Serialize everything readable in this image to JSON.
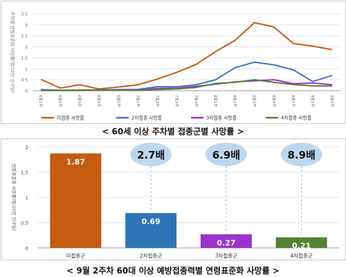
{
  "captions": {
    "top": "< 60세 이상 주차별 접종군별 사망률 >",
    "bottom": "< 9월 2주차 60대 이상 예방접종력별 연령표준화 사망률 >"
  },
  "chart_data": [
    {
      "type": "line",
      "ylabel": "주차별 연령표준화 사망률(명/10만 인구당)",
      "ylim": [
        0,
        3.5
      ],
      "yticks": [
        0,
        0.5,
        1,
        1.5,
        2,
        2.5,
        3,
        3.5
      ],
      "categories": [
        "6월1주",
        "6월2주",
        "6월3주",
        "6월4주",
        "6월5주",
        "7월1주",
        "7월2주",
        "7월3주",
        "7월4주",
        "8월1주",
        "8월2주",
        "8월3주",
        "8월4주",
        "8월5주",
        "9월1주",
        "9월2주"
      ],
      "grid": true,
      "legend": "bottom",
      "series": [
        {
          "name": "미접종 사망률",
          "color": "#c55a11",
          "values": [
            0.52,
            0.12,
            0.27,
            0.08,
            0.17,
            0.27,
            0.53,
            0.84,
            1.2,
            1.78,
            2.3,
            3.1,
            2.9,
            2.15,
            2.03,
            1.87
          ]
        },
        {
          "name": "2차접종 사망률",
          "color": "#4472c4",
          "values": [
            0.05,
            0.02,
            0.03,
            0.04,
            0.05,
            0.06,
            0.18,
            0.18,
            0.27,
            0.5,
            1.05,
            1.3,
            1.18,
            0.95,
            0.42,
            0.69
          ]
        },
        {
          "name": "3차접종 사망률",
          "color": "#9933cc",
          "values": [
            0.02,
            0.02,
            0.02,
            0.02,
            0.03,
            0.03,
            0.1,
            0.12,
            0.2,
            0.3,
            0.4,
            0.45,
            0.5,
            0.32,
            0.35,
            0.27
          ]
        },
        {
          "name": "4차접종 사망률",
          "color": "#548235",
          "values": [
            0.01,
            0.01,
            0.01,
            0.02,
            0.02,
            0.02,
            0.05,
            0.08,
            0.15,
            0.33,
            0.38,
            0.5,
            0.38,
            0.28,
            0.22,
            0.21
          ]
        }
      ]
    },
    {
      "type": "bar",
      "ylabel": "연령표준화 사망률(명/10만 인구당)",
      "ylim": [
        0,
        2
      ],
      "yticks": [
        0,
        0.5,
        1,
        1.5,
        2
      ],
      "categories": [
        "미접종군",
        "2차접종군",
        "3차접종군",
        "4차접종군"
      ],
      "values": [
        1.87,
        0.69,
        0.27,
        0.21
      ],
      "value_labels": [
        "1.87",
        "0.69",
        "0.27",
        "0.21"
      ],
      "colors": [
        "#c55a11",
        "#2e75b6",
        "#9933cc",
        "#548235"
      ],
      "annotations": [
        "2.7배",
        "6.9배",
        "8.9배"
      ],
      "grid": true
    }
  ]
}
